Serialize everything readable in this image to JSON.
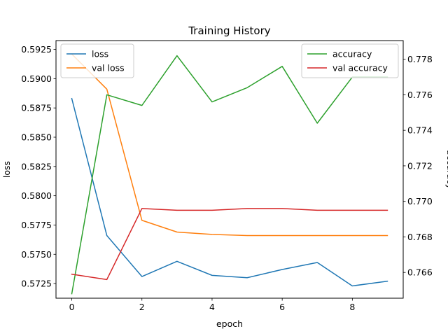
{
  "chart_data": {
    "type": "line",
    "title": "Training History",
    "xlabel": "epoch",
    "ylabel_left": "loss",
    "ylabel_right": "accuracy",
    "x": [
      0,
      1,
      2,
      3,
      4,
      5,
      6,
      7,
      8,
      9
    ],
    "xlim": [
      -0.45,
      9.45
    ],
    "xticks": [
      0,
      2,
      4,
      6,
      8
    ],
    "ylim_left": [
      0.57125,
      0.59325
    ],
    "yticks_left": [
      "0.5725",
      "0.5750",
      "0.5775",
      "0.5800",
      "0.5825",
      "0.5850",
      "0.5875",
      "0.5900",
      "0.5925"
    ],
    "ylim_right": [
      0.76455,
      0.77905
    ],
    "yticks_right": [
      "0.766",
      "0.768",
      "0.770",
      "0.772",
      "0.774",
      "0.776",
      "0.778"
    ],
    "grid": false,
    "series_left": [
      {
        "name": "loss",
        "color": "#1f77b4",
        "values": [
          0.5883,
          0.5766,
          0.5731,
          0.5744,
          0.5732,
          0.573,
          0.5737,
          0.5743,
          0.5723,
          0.5727
        ]
      },
      {
        "name": "val loss",
        "color": "#ff7f0e",
        "values": [
          0.5921,
          0.5891,
          0.5779,
          0.5769,
          0.5767,
          0.5766,
          0.5766,
          0.5766,
          0.5766,
          0.5766
        ]
      }
    ],
    "series_right": [
      {
        "name": "accuracy",
        "color": "#2ca02c",
        "values": [
          0.7648,
          0.776,
          0.7754,
          0.7782,
          0.7756,
          0.7764,
          0.7776,
          0.7744,
          0.777,
          0.777
        ]
      },
      {
        "name": "val accuracy",
        "color": "#d62728",
        "values": [
          0.7659,
          0.7656,
          0.7696,
          0.7695,
          0.7695,
          0.7696,
          0.7696,
          0.7695,
          0.7695,
          0.7695
        ]
      }
    ],
    "legend_left_placement": "top-left",
    "legend_right_placement": "top-right"
  }
}
